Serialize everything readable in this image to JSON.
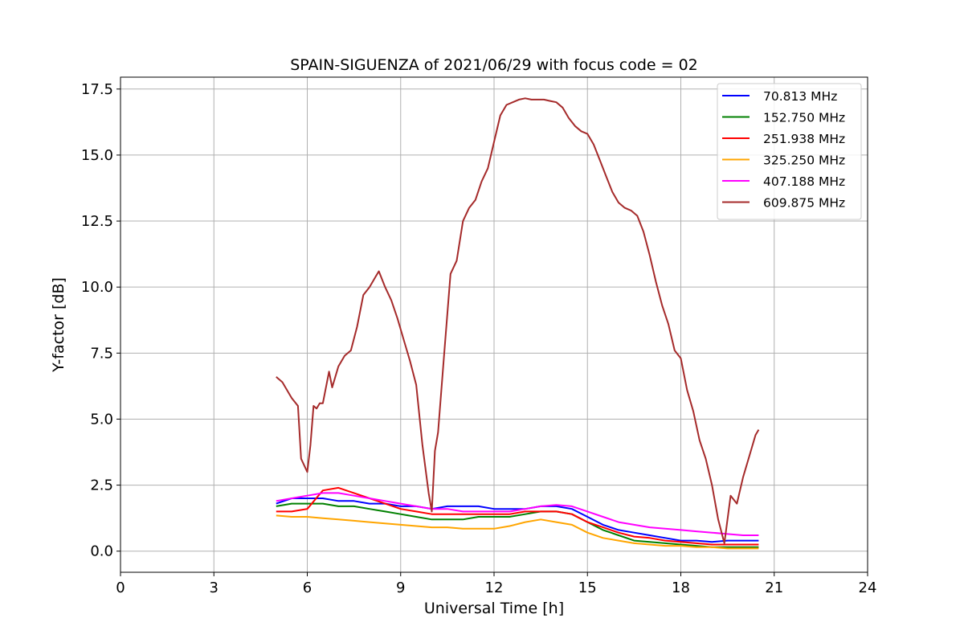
{
  "chart_data": {
    "type": "line",
    "title": "SPAIN-SIGUENZA of 2021/06/29 with focus code = 02",
    "xlabel": "Universal Time [h]",
    "ylabel": "Y-factor [dB]",
    "xlim": [
      0,
      24
    ],
    "ylim": [
      -0.8,
      17.95
    ],
    "xticks": [
      0,
      3,
      6,
      9,
      12,
      15,
      18,
      21,
      24
    ],
    "xtick_labels": [
      "0",
      "3",
      "6",
      "9",
      "12",
      "15",
      "18",
      "21",
      "24"
    ],
    "yticks": [
      0,
      2.5,
      5,
      7.5,
      10,
      12.5,
      15,
      17.5
    ],
    "ytick_labels": [
      "0.0",
      "2.5",
      "5.0",
      "7.5",
      "10.0",
      "12.5",
      "15.0",
      "17.5"
    ],
    "grid": true,
    "legend_position": "top-right",
    "series": [
      {
        "name": "  70.813 MHz",
        "color": "#0000ff",
        "x": [
          5.0,
          5.5,
          6.0,
          6.5,
          7.0,
          7.5,
          8.0,
          8.5,
          9.0,
          9.5,
          10.0,
          10.5,
          11.0,
          11.5,
          12.0,
          12.5,
          13.0,
          13.5,
          14.0,
          14.5,
          15.0,
          15.5,
          16.0,
          16.5,
          17.0,
          17.5,
          18.0,
          18.5,
          19.0,
          19.5,
          20.0,
          20.5
        ],
        "y": [
          1.8,
          2.0,
          2.0,
          2.0,
          1.9,
          1.9,
          1.8,
          1.8,
          1.7,
          1.7,
          1.6,
          1.7,
          1.7,
          1.7,
          1.6,
          1.6,
          1.6,
          1.7,
          1.7,
          1.6,
          1.3,
          1.0,
          0.8,
          0.7,
          0.6,
          0.5,
          0.4,
          0.4,
          0.35,
          0.4,
          0.4,
          0.4
        ]
      },
      {
        "name": "152.750 MHz",
        "color": "#008000",
        "x": [
          5.0,
          5.5,
          6.0,
          6.5,
          7.0,
          7.5,
          8.0,
          8.5,
          9.0,
          9.5,
          10.0,
          10.5,
          11.0,
          11.5,
          12.0,
          12.5,
          13.0,
          13.5,
          14.0,
          14.5,
          15.0,
          15.5,
          16.0,
          16.5,
          17.0,
          17.5,
          18.0,
          18.5,
          19.0,
          19.5,
          20.0,
          20.5
        ],
        "y": [
          1.7,
          1.8,
          1.8,
          1.8,
          1.7,
          1.7,
          1.6,
          1.5,
          1.4,
          1.3,
          1.2,
          1.2,
          1.2,
          1.3,
          1.3,
          1.3,
          1.4,
          1.5,
          1.5,
          1.4,
          1.1,
          0.8,
          0.6,
          0.4,
          0.35,
          0.3,
          0.25,
          0.2,
          0.15,
          0.15,
          0.15,
          0.15
        ]
      },
      {
        "name": "251.938 MHz",
        "color": "#ff0000",
        "x": [
          5.0,
          5.5,
          6.0,
          6.5,
          7.0,
          7.5,
          8.0,
          8.5,
          9.0,
          9.5,
          10.0,
          10.5,
          11.0,
          11.5,
          12.0,
          12.5,
          13.0,
          13.5,
          14.0,
          14.5,
          15.0,
          15.5,
          16.0,
          16.5,
          17.0,
          17.5,
          18.0,
          18.5,
          19.0,
          19.5,
          20.0,
          20.5
        ],
        "y": [
          1.5,
          1.5,
          1.6,
          2.3,
          2.4,
          2.2,
          2.0,
          1.8,
          1.6,
          1.5,
          1.4,
          1.4,
          1.4,
          1.4,
          1.4,
          1.4,
          1.5,
          1.5,
          1.5,
          1.4,
          1.1,
          0.9,
          0.7,
          0.55,
          0.5,
          0.4,
          0.35,
          0.3,
          0.25,
          0.25,
          0.25,
          0.25
        ]
      },
      {
        "name": "325.250 MHz",
        "color": "#ffa500",
        "x": [
          5.0,
          5.5,
          6.0,
          6.5,
          7.0,
          7.5,
          8.0,
          8.5,
          9.0,
          9.5,
          10.0,
          10.5,
          11.0,
          11.5,
          12.0,
          12.5,
          13.0,
          13.5,
          14.0,
          14.5,
          15.0,
          15.5,
          16.0,
          16.5,
          17.0,
          17.5,
          18.0,
          18.5,
          19.0,
          19.5,
          20.0,
          20.5
        ],
        "y": [
          1.35,
          1.3,
          1.3,
          1.25,
          1.2,
          1.15,
          1.1,
          1.05,
          1.0,
          0.95,
          0.9,
          0.9,
          0.85,
          0.85,
          0.85,
          0.95,
          1.1,
          1.2,
          1.1,
          1.0,
          0.7,
          0.5,
          0.4,
          0.3,
          0.25,
          0.2,
          0.2,
          0.15,
          0.15,
          0.1,
          0.1,
          0.1
        ]
      },
      {
        "name": "407.188 MHz",
        "color": "#ff00ff",
        "x": [
          5.0,
          5.5,
          6.0,
          6.5,
          7.0,
          7.5,
          8.0,
          8.5,
          9.0,
          9.5,
          10.0,
          10.5,
          11.0,
          11.5,
          12.0,
          12.5,
          13.0,
          13.5,
          14.0,
          14.5,
          15.0,
          15.5,
          16.0,
          16.5,
          17.0,
          17.5,
          18.0,
          18.5,
          19.0,
          19.5,
          20.0,
          20.5
        ],
        "y": [
          1.9,
          2.0,
          2.1,
          2.2,
          2.2,
          2.1,
          2.0,
          1.9,
          1.8,
          1.7,
          1.6,
          1.6,
          1.5,
          1.5,
          1.5,
          1.5,
          1.6,
          1.7,
          1.75,
          1.7,
          1.5,
          1.3,
          1.1,
          1.0,
          0.9,
          0.85,
          0.8,
          0.75,
          0.7,
          0.65,
          0.6,
          0.6
        ]
      },
      {
        "name": "609.875 MHz",
        "color": "#a52a2a",
        "x": [
          5.0,
          5.2,
          5.5,
          5.7,
          5.8,
          6.0,
          6.1,
          6.2,
          6.3,
          6.4,
          6.5,
          6.7,
          6.8,
          7.0,
          7.2,
          7.4,
          7.6,
          7.8,
          8.0,
          8.2,
          8.3,
          8.5,
          8.7,
          8.9,
          9.1,
          9.3,
          9.5,
          9.7,
          9.9,
          10.0,
          10.1,
          10.2,
          10.4,
          10.6,
          10.8,
          11.0,
          11.2,
          11.4,
          11.6,
          11.8,
          12.0,
          12.2,
          12.4,
          12.6,
          12.8,
          13.0,
          13.2,
          13.4,
          13.6,
          13.8,
          14.0,
          14.2,
          14.4,
          14.6,
          14.8,
          15.0,
          15.2,
          15.4,
          15.6,
          15.8,
          16.0,
          16.2,
          16.4,
          16.6,
          16.8,
          17.0,
          17.2,
          17.4,
          17.6,
          17.8,
          18.0,
          18.2,
          18.4,
          18.6,
          18.8,
          19.0,
          19.2,
          19.4,
          19.6,
          19.8,
          20.0,
          20.2,
          20.4,
          20.5
        ],
        "y": [
          6.6,
          6.4,
          5.8,
          5.5,
          3.5,
          3.0,
          4.0,
          5.5,
          5.4,
          5.6,
          5.6,
          6.8,
          6.2,
          7.0,
          7.4,
          7.6,
          8.5,
          9.7,
          10.0,
          10.4,
          10.6,
          10.0,
          9.5,
          8.8,
          8.0,
          7.2,
          6.3,
          4.0,
          2.2,
          1.5,
          3.8,
          4.5,
          7.5,
          10.5,
          11.0,
          12.5,
          13.0,
          13.3,
          14.0,
          14.5,
          15.5,
          16.5,
          16.9,
          17.0,
          17.1,
          17.15,
          17.1,
          17.1,
          17.1,
          17.05,
          17.0,
          16.8,
          16.4,
          16.1,
          15.9,
          15.8,
          15.4,
          14.8,
          14.2,
          13.6,
          13.2,
          13.0,
          12.9,
          12.7,
          12.1,
          11.2,
          10.2,
          9.3,
          8.6,
          7.6,
          7.3,
          6.1,
          5.3,
          4.2,
          3.5,
          2.5,
          1.2,
          0.3,
          2.1,
          1.8,
          2.8,
          3.6,
          4.4,
          4.6
        ]
      }
    ]
  }
}
